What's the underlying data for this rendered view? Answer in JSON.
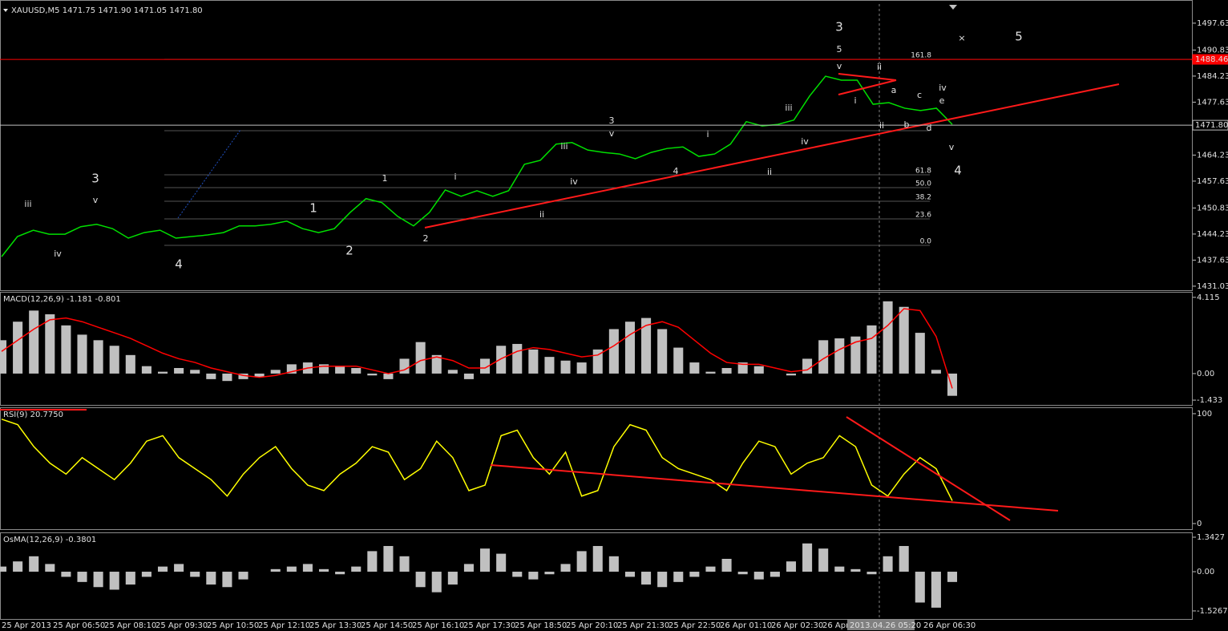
{
  "chart_data": [
    {
      "type": "line",
      "title": "XAUUSD,M5  1471.75 1471.90 1471.05 1471.80",
      "color": "#00e000",
      "values": [
        1438.5,
        1443.6,
        1445.2,
        1444.2,
        1444.2,
        1446.1,
        1446.7,
        1445.6,
        1443.2,
        1444.6,
        1445.2,
        1443.2,
        1443.6,
        1444.0,
        1444.6,
        1446.3,
        1446.3,
        1446.7,
        1447.5,
        1445.6,
        1444.6,
        1445.6,
        1449.7,
        1453.2,
        1452.2,
        1448.7,
        1446.3,
        1449.7,
        1455.4,
        1453.8,
        1455.2,
        1453.8,
        1455.2,
        1461.9,
        1462.9,
        1467.0,
        1467.4,
        1465.5,
        1464.9,
        1464.5,
        1463.3,
        1464.9,
        1465.9,
        1466.3,
        1463.9,
        1464.5,
        1467.0,
        1472.7,
        1471.6,
        1472.0,
        1473.1,
        1479.2,
        1484.2,
        1483.2,
        1483.2,
        1477.1,
        1477.5,
        1476.1,
        1475.5,
        1476.1,
        1472.0
      ],
      "ylim": [
        1430.0,
        1503.5
      ],
      "yticks": [
        1497.63,
        1490.83,
        1484.23,
        1477.63,
        1464.23,
        1457.63,
        1450.83,
        1444.23,
        1437.63,
        1431.03
      ],
      "levels": [
        {
          "value": 1488.46,
          "label": "1488.46",
          "color": "#ff0000"
        },
        {
          "value": 1471.8,
          "label": "1471.80",
          "color": "#c0c0c0"
        }
      ]
    },
    {
      "type": "bar",
      "title": "MACD(12,26,9) -1.181 -0.801",
      "series": [
        {
          "color": "#c0c0c0",
          "values": [
            1.8,
            2.8,
            3.4,
            3.2,
            2.6,
            2.1,
            1.8,
            1.5,
            1.0,
            0.4,
            0.1,
            0.3,
            0.2,
            -0.3,
            -0.4,
            -0.3,
            -0.2,
            0.2,
            0.5,
            0.6,
            0.5,
            0.4,
            0.3,
            -0.1,
            -0.3,
            0.8,
            1.7,
            1.0,
            0.2,
            -0.3,
            0.8,
            1.5,
            1.6,
            1.3,
            0.9,
            0.7,
            0.6,
            1.3,
            2.4,
            2.8,
            3.0,
            2.4,
            1.4,
            0.6,
            0.1,
            0.3,
            0.6,
            0.4,
            0.0,
            -0.1,
            0.8,
            1.8,
            1.9,
            2.0,
            2.6,
            3.9,
            3.6,
            2.2,
            0.2,
            -1.2
          ]
        },
        {
          "type": "line",
          "color": "#ff0000",
          "values": [
            1.2,
            1.8,
            2.4,
            2.9,
            3.0,
            2.8,
            2.5,
            2.2,
            1.9,
            1.5,
            1.1,
            0.8,
            0.6,
            0.3,
            0.1,
            -0.1,
            -0.2,
            -0.1,
            0.1,
            0.3,
            0.4,
            0.4,
            0.4,
            0.2,
            0.0,
            0.2,
            0.7,
            0.9,
            0.7,
            0.3,
            0.3,
            0.8,
            1.2,
            1.4,
            1.3,
            1.1,
            0.9,
            1.0,
            1.5,
            2.1,
            2.6,
            2.8,
            2.5,
            1.8,
            1.1,
            0.6,
            0.5,
            0.5,
            0.3,
            0.1,
            0.2,
            0.8,
            1.3,
            1.7,
            1.9,
            2.6,
            3.5,
            3.4,
            2.0,
            -0.8
          ]
        }
      ],
      "ylim": [
        -1.69,
        4.41
      ],
      "yticks": [
        4.115,
        {
          "value": 0,
          "label": "0.00"
        },
        -1.433
      ]
    },
    {
      "type": "line",
      "title": "RSI(9) 20.7750",
      "color": "#ffff00",
      "values": [
        95,
        90,
        70,
        55,
        45,
        60,
        50,
        40,
        55,
        75,
        80,
        60,
        50,
        40,
        25,
        45,
        60,
        70,
        50,
        35,
        30,
        45,
        55,
        70,
        65,
        40,
        50,
        75,
        60,
        30,
        35,
        80,
        85,
        60,
        45,
        65,
        25,
        30,
        70,
        90,
        85,
        60,
        50,
        45,
        40,
        30,
        55,
        75,
        70,
        45,
        55,
        60,
        80,
        70,
        35,
        25,
        45,
        60,
        50,
        20.8
      ],
      "ylim": [
        -5.1,
        105.8
      ],
      "yticks": [
        100,
        0
      ]
    },
    {
      "type": "bar",
      "title": "OsMA(12,26,9) -0.3801",
      "series": [
        {
          "color": "#c0c0c0",
          "values": [
            0.2,
            0.4,
            0.6,
            0.3,
            -0.2,
            -0.4,
            -0.6,
            -0.7,
            -0.5,
            -0.2,
            0.2,
            0.3,
            -0.2,
            -0.5,
            -0.6,
            -0.3,
            0.0,
            0.1,
            0.2,
            0.3,
            0.1,
            -0.1,
            0.2,
            0.8,
            1.0,
            0.6,
            -0.6,
            -0.8,
            -0.5,
            0.3,
            0.9,
            0.7,
            -0.2,
            -0.3,
            -0.1,
            0.3,
            0.8,
            1.0,
            0.6,
            -0.2,
            -0.5,
            -0.6,
            -0.4,
            -0.2,
            0.2,
            0.5,
            -0.1,
            -0.3,
            -0.2,
            0.4,
            1.1,
            0.9,
            0.2,
            0.1,
            -0.1,
            0.6,
            1.0,
            -1.2,
            -1.4,
            -0.4
          ]
        }
      ],
      "ylim": [
        -1.84,
        1.53
      ],
      "yticks": [
        1.3427,
        {
          "value": 0,
          "label": "0.00"
        },
        -1.5267
      ]
    }
  ],
  "time_axis": {
    "labels": [
      "25 Apr 2013",
      "25 Apr 06:50",
      "25 Apr 08:10",
      "25 Apr 09:30",
      "25 Apr 10:50",
      "25 Apr 12:10",
      "25 Apr 13:30",
      "25 Apr 14:50",
      "25 Apr 16:10",
      "25 Apr 17:30",
      "25 Apr 18:50",
      "25 Apr 20:10",
      "25 Apr 21:30",
      "25 Apr 22:50",
      "26 Apr 01:10",
      "26 Apr 02:30",
      "26 Apr"
    ],
    "cursor": "2013.04.26 05:20",
    "last": "26 Apr 06:30"
  },
  "annotations": [
    {
      "text": "3",
      "color": "#ff8c1a"
    },
    {
      "text": "5",
      "color": "#9acd32"
    },
    {
      "text": "v",
      "color": "#ffffff"
    },
    {
      "text": "ii",
      "color": "#ffffff"
    },
    {
      "text": "i",
      "color": "#ffffff"
    },
    {
      "text": "a",
      "color": "#ff3b1a"
    },
    {
      "text": "c",
      "color": "#ff3b1a"
    },
    {
      "text": "e",
      "color": "#ff3b1a"
    },
    {
      "text": "iv",
      "color": "#ffffff"
    },
    {
      "text": "b",
      "color": "#ff3b1a"
    },
    {
      "text": "d",
      "color": "#ff3b1a"
    },
    {
      "text": "ii",
      "color": "#ffffff"
    },
    {
      "text": "v",
      "color": "#ffffff"
    },
    {
      "text": "4",
      "color": "#ff8c1a"
    },
    {
      "text": "5",
      "color": "#ff8c1a"
    },
    {
      "text": "×",
      "color": "#ff2020"
    },
    {
      "text": "iii",
      "color": "#ffffff"
    },
    {
      "text": "iv",
      "color": "#ffffff"
    },
    {
      "text": "i",
      "color": "#ffffff"
    },
    {
      "text": "ii",
      "color": "#ffffff"
    },
    {
      "text": "4",
      "color": "#9acd32"
    },
    {
      "text": "3",
      "color": "#9acd32"
    },
    {
      "text": "v",
      "color": "#ffffff"
    },
    {
      "text": "iii",
      "color": "#ffffff"
    },
    {
      "text": "iv",
      "color": "#ffffff"
    },
    {
      "text": "ii",
      "color": "#ffffff"
    },
    {
      "text": "i",
      "color": "#ffffff"
    },
    {
      "text": "1",
      "color": "#9acd32"
    },
    {
      "text": "2",
      "color": "#9acd32"
    },
    {
      "text": "1",
      "color": "#ff8c1a"
    },
    {
      "text": "2",
      "color": "#ff8c1a"
    },
    {
      "text": "3",
      "color": "#ff00ff"
    },
    {
      "text": "v",
      "color": "#ffffff"
    },
    {
      "text": "iii",
      "color": "#ffffff"
    },
    {
      "text": "iv",
      "color": "#ffffff"
    },
    {
      "text": "4",
      "color": "#ff00ff"
    }
  ],
  "fibo": [
    "161.8",
    "61.8",
    "50.0",
    "38.2",
    "23.6",
    "0.0"
  ]
}
